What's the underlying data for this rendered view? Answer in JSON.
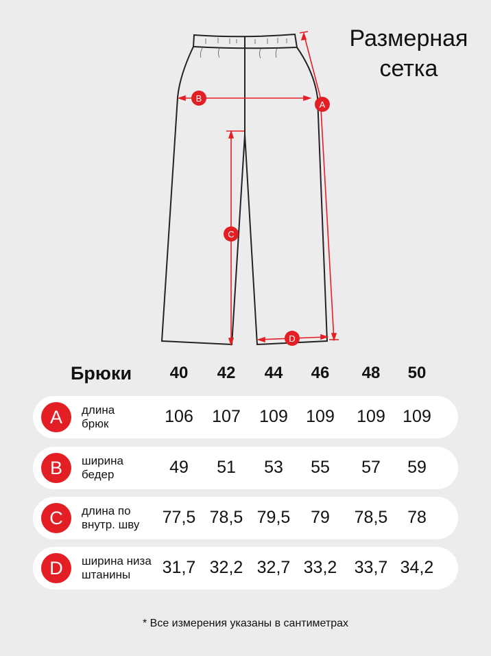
{
  "title": {
    "line1": "Размерная",
    "line2": "сетка"
  },
  "colors": {
    "accent": "#e31e24",
    "background": "#ececec",
    "row": "#ffffff"
  },
  "diagram": {
    "labels": {
      "A": "A",
      "B": "B",
      "C": "C",
      "D": "D"
    }
  },
  "table": {
    "product": "Брюки",
    "sizes": [
      "40",
      "42",
      "44",
      "46",
      "48",
      "50"
    ],
    "rows": [
      {
        "badge": "A",
        "label1": "длина",
        "label2": "брюк",
        "values": [
          "106",
          "107",
          "109",
          "109",
          "109",
          "109"
        ]
      },
      {
        "badge": "B",
        "label1": "ширина",
        "label2": "бедер",
        "values": [
          "49",
          "51",
          "53",
          "55",
          "57",
          "59"
        ]
      },
      {
        "badge": "C",
        "label1": "длина по",
        "label2": "внутр. шву",
        "values": [
          "77,5",
          "78,5",
          "79,5",
          "79",
          "78,5",
          "78"
        ]
      },
      {
        "badge": "D",
        "label1": "ширина низа",
        "label2": "штанины",
        "values": [
          "31,7",
          "32,2",
          "32,7",
          "33,2",
          "33,7",
          "34,2"
        ]
      }
    ]
  },
  "footnote": "* Все измерения указаны в сантиметрах"
}
